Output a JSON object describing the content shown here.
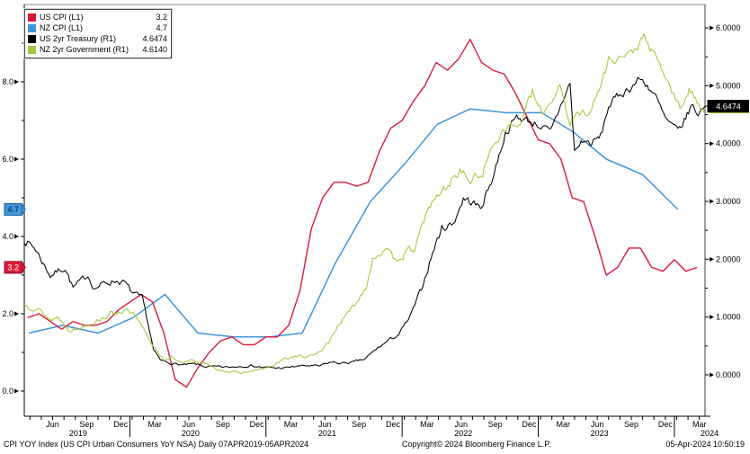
{
  "legend": {
    "items": [
      {
        "id": "us-cpi",
        "label": "US CPI (L1)",
        "value": "3.2",
        "color": "#d91a3a"
      },
      {
        "id": "nz-cpi",
        "label": "NZ CPI (L1)",
        "value": "4.7",
        "color": "#3f95da"
      },
      {
        "id": "us-2yr",
        "label": "US 2yr Treasury (R1)",
        "value": "4.6474",
        "color": "#000000"
      },
      {
        "id": "nz-2yr",
        "label": "NZ 2yr Government (R1)",
        "value": "4.6140",
        "color": "#a2c83c"
      }
    ]
  },
  "footer": {
    "left": "CPI YOY Index (US CPI Urban Consumers YoY NSA)  Daily 07APR2019-05APR2024",
    "copyright": "Copyright© 2024 Bloomberg Finance L.P.",
    "datetime": "05-Apr-2024 10:50:19"
  },
  "chart_data": {
    "type": "line",
    "title": "",
    "grid": false,
    "legend_position": "top-left",
    "x_axis": {
      "unit": "months since 2019-04-07 (span 07APR2019 - 05APR2024)",
      "month_tick_step": 1,
      "month_labels": [
        {
          "t": 2.5,
          "l": "Jun"
        },
        {
          "t": 5.5,
          "l": "Sep"
        },
        {
          "t": 8.5,
          "l": "Dec"
        },
        {
          "t": 11.5,
          "l": "Mar"
        },
        {
          "t": 14.5,
          "l": "Jun"
        },
        {
          "t": 17.5,
          "l": "Sep"
        },
        {
          "t": 20.5,
          "l": "Dec"
        },
        {
          "t": 23.5,
          "l": "Mar"
        },
        {
          "t": 26.5,
          "l": "Jun"
        },
        {
          "t": 29.5,
          "l": "Sep"
        },
        {
          "t": 32.5,
          "l": "Dec"
        },
        {
          "t": 35.5,
          "l": "Mar"
        },
        {
          "t": 38.5,
          "l": "Jun"
        },
        {
          "t": 41.5,
          "l": "Sep"
        },
        {
          "t": 44.5,
          "l": "Dec"
        },
        {
          "t": 47.5,
          "l": "Mar"
        },
        {
          "t": 50.5,
          "l": "Jun"
        },
        {
          "t": 53.5,
          "l": "Sep"
        },
        {
          "t": 56.5,
          "l": "Dec"
        },
        {
          "t": 59.5,
          "l": "Mar"
        }
      ],
      "year_labels": [
        {
          "t": 4.75,
          "l": "2019"
        },
        {
          "t": 14.65,
          "l": "2020"
        },
        {
          "t": 26.7,
          "l": "2021"
        },
        {
          "t": 38.7,
          "l": "2022"
        },
        {
          "t": 50.7,
          "l": "2023"
        },
        {
          "t": 60.4,
          "l": "2024"
        }
      ],
      "year_dividers_t": [
        9.3,
        21.3,
        33.3,
        45.3,
        57.3
      ]
    },
    "left_axis": {
      "name": "L1 (CPI YoY %)",
      "range": [
        -0.651,
        10.0
      ],
      "ticks": [
        {
          "v": 8,
          "label": "8.0"
        },
        {
          "v": 6,
          "label": "6.0"
        },
        {
          "v": 4,
          "label": "4.0"
        },
        {
          "v": 2,
          "label": "2.0"
        },
        {
          "v": 0,
          "label": "0.0"
        }
      ],
      "minor": [
        9,
        7,
        5,
        3,
        1
      ]
    },
    "right_axis": {
      "name": "R1 (2yr yield %)",
      "range": [
        -0.715,
        6.405
      ],
      "ticks": [
        {
          "v": 6,
          "label": "6.0000"
        },
        {
          "v": 5,
          "label": "5.0000"
        },
        {
          "v": 4,
          "label": "4.0000"
        },
        {
          "v": 3,
          "label": "3.0000"
        },
        {
          "v": 2,
          "label": "2.0000"
        },
        {
          "v": 1,
          "label": "1.0000"
        },
        {
          "v": 0,
          "label": "0.0000"
        }
      ],
      "minor": [
        5.5,
        4.5,
        3.5,
        2.5,
        1.5,
        0.5
      ]
    },
    "badges": [
      {
        "side": "left",
        "axis": "L1",
        "value": 4.7,
        "label": "4.7",
        "fill": "#3f95da",
        "stroke": "#1d5e9e",
        "text_color": "#06233f"
      },
      {
        "side": "left",
        "axis": "L1",
        "value": 3.2,
        "label": "3.2",
        "fill": "#d91a3a",
        "stroke": "#8c0e24",
        "text_color": "#ffffff"
      },
      {
        "side": "right",
        "axis": "R1",
        "value": 4.6474,
        "label": "4.6474",
        "fill": "#000000",
        "stroke": "#000000",
        "text_color": "#ffffff",
        "backing": "#a2c83c"
      }
    ],
    "series": [
      {
        "id": "nz-cpi",
        "name": "NZ CPI (L1)",
        "axis": "L1",
        "color": "#3f95da",
        "width": 1.5,
        "noise": 0,
        "points": [
          [
            0.4,
            1.5
          ],
          [
            3.4,
            1.7
          ],
          [
            6.5,
            1.5
          ],
          [
            9.6,
            1.9
          ],
          [
            12.4,
            2.5
          ],
          [
            15.3,
            1.5
          ],
          [
            18.5,
            1.4
          ],
          [
            21.6,
            1.4
          ],
          [
            24.5,
            1.5
          ],
          [
            27.4,
            3.3
          ],
          [
            30.5,
            4.9
          ],
          [
            33.6,
            5.9
          ],
          [
            36.4,
            6.9
          ],
          [
            39.3,
            7.3
          ],
          [
            42.5,
            7.2
          ],
          [
            45.6,
            7.2
          ],
          [
            48.4,
            6.7
          ],
          [
            51.3,
            6.0
          ],
          [
            54.5,
            5.6
          ],
          [
            57.6,
            4.7
          ]
        ]
      },
      {
        "id": "us-cpi",
        "name": "US CPI (L1)",
        "axis": "L1",
        "color": "#d91a3a",
        "width": 1.4,
        "noise": 0,
        "x_start": 0.3,
        "x_step": 1,
        "values": [
          1.9,
          2.0,
          1.8,
          1.6,
          1.8,
          1.7,
          1.7,
          1.8,
          2.1,
          2.3,
          2.5,
          2.3,
          1.5,
          0.3,
          0.1,
          0.6,
          1.0,
          1.3,
          1.4,
          1.2,
          1.2,
          1.4,
          1.4,
          1.7,
          2.6,
          4.2,
          5.0,
          5.4,
          5.4,
          5.3,
          5.4,
          6.2,
          6.8,
          7.0,
          7.5,
          7.9,
          8.5,
          8.3,
          8.6,
          9.1,
          8.5,
          8.3,
          8.2,
          7.7,
          7.1,
          6.5,
          6.4,
          6.0,
          5.0,
          4.9,
          4.0,
          3.0,
          3.2,
          3.7,
          3.7,
          3.2,
          3.1,
          3.4,
          3.1,
          3.2
        ]
      },
      {
        "id": "us-2yr",
        "name": "US 2yr Treasury (R1)",
        "axis": "R1",
        "color": "#000000",
        "width": 1.05,
        "noise": 0.05,
        "seed": 7,
        "points": [
          [
            0,
            2.34
          ],
          [
            1,
            2.18
          ],
          [
            1.7,
            1.92
          ],
          [
            2.3,
            1.72
          ],
          [
            3,
            1.8
          ],
          [
            3.6,
            1.86
          ],
          [
            4.3,
            1.5
          ],
          [
            5,
            1.62
          ],
          [
            5.6,
            1.73
          ],
          [
            6.2,
            1.5
          ],
          [
            7,
            1.58
          ],
          [
            8,
            1.63
          ],
          [
            8.8,
            1.6
          ],
          [
            9.6,
            1.4
          ],
          [
            10.4,
            1.32
          ],
          [
            10.9,
            0.9
          ],
          [
            11.4,
            0.42
          ],
          [
            12,
            0.25
          ],
          [
            13,
            0.2
          ],
          [
            14,
            0.17
          ],
          [
            15,
            0.19
          ],
          [
            16,
            0.14
          ],
          [
            17,
            0.14
          ],
          [
            18,
            0.13
          ],
          [
            19,
            0.15
          ],
          [
            20,
            0.16
          ],
          [
            21,
            0.13
          ],
          [
            22,
            0.12
          ],
          [
            23,
            0.12
          ],
          [
            24,
            0.15
          ],
          [
            25,
            0.16
          ],
          [
            26,
            0.15
          ],
          [
            27,
            0.22
          ],
          [
            28,
            0.2
          ],
          [
            29,
            0.22
          ],
          [
            30,
            0.27
          ],
          [
            31,
            0.44
          ],
          [
            32,
            0.58
          ],
          [
            33,
            0.7
          ],
          [
            34,
            1.0
          ],
          [
            35,
            1.48
          ],
          [
            36,
            2.12
          ],
          [
            36.8,
            2.54
          ],
          [
            37.8,
            2.62
          ],
          [
            38.7,
            3.05
          ],
          [
            39.5,
            2.98
          ],
          [
            40.2,
            2.88
          ],
          [
            41.3,
            3.42
          ],
          [
            42.4,
            4.18
          ],
          [
            43.4,
            4.46
          ],
          [
            44.4,
            4.4
          ],
          [
            45.4,
            4.32
          ],
          [
            46.4,
            4.18
          ],
          [
            47.4,
            4.72
          ],
          [
            48.1,
            5.04
          ],
          [
            48.5,
            3.86
          ],
          [
            49.2,
            4.05
          ],
          [
            50,
            4.0
          ],
          [
            50.8,
            4.12
          ],
          [
            51.5,
            4.65
          ],
          [
            52.5,
            4.85
          ],
          [
            53.5,
            4.98
          ],
          [
            54.2,
            5.12
          ],
          [
            54.9,
            5.02
          ],
          [
            55.6,
            4.82
          ],
          [
            56.5,
            4.42
          ],
          [
            57.6,
            4.2
          ],
          [
            58.3,
            4.44
          ],
          [
            58.8,
            4.66
          ],
          [
            59.4,
            4.52
          ],
          [
            60,
            4.6474
          ]
        ]
      },
      {
        "id": "nz-2yr",
        "name": "NZ 2yr Government (R1)",
        "axis": "R1",
        "color": "#a2c83c",
        "width": 1.05,
        "noise": 0.055,
        "seed": 13,
        "points": [
          [
            0,
            1.22
          ],
          [
            0.8,
            1.18
          ],
          [
            1.6,
            1.08
          ],
          [
            2.3,
            0.95
          ],
          [
            3,
            1.0
          ],
          [
            3.9,
            0.8
          ],
          [
            4.6,
            0.78
          ],
          [
            5.3,
            0.86
          ],
          [
            6.1,
            0.92
          ],
          [
            7,
            1.0
          ],
          [
            8,
            1.08
          ],
          [
            8.8,
            1.12
          ],
          [
            9.6,
            1.04
          ],
          [
            10.5,
            0.78
          ],
          [
            11.2,
            0.55
          ],
          [
            11.8,
            0.4
          ],
          [
            12.4,
            0.24
          ],
          [
            13,
            0.3
          ],
          [
            14,
            0.22
          ],
          [
            15,
            0.25
          ],
          [
            16,
            0.18
          ],
          [
            17,
            0.1
          ],
          [
            18,
            0.06
          ],
          [
            19,
            0.03
          ],
          [
            20,
            0.06
          ],
          [
            21,
            0.1
          ],
          [
            22,
            0.16
          ],
          [
            23,
            0.28
          ],
          [
            24,
            0.33
          ],
          [
            25,
            0.3
          ],
          [
            26,
            0.4
          ],
          [
            26.8,
            0.55
          ],
          [
            27.6,
            0.85
          ],
          [
            28.5,
            1.05
          ],
          [
            29.5,
            1.32
          ],
          [
            30.2,
            1.58
          ],
          [
            30.7,
            2.02
          ],
          [
            31.5,
            2.15
          ],
          [
            32.5,
            2.02
          ],
          [
            33.5,
            2.08
          ],
          [
            34.5,
            2.2
          ],
          [
            35.5,
            2.85
          ],
          [
            36.5,
            3.1
          ],
          [
            37.5,
            3.32
          ],
          [
            38.4,
            3.55
          ],
          [
            39.3,
            3.35
          ],
          [
            40.4,
            3.5
          ],
          [
            41.5,
            4.05
          ],
          [
            42.5,
            4.32
          ],
          [
            43.6,
            4.3
          ],
          [
            44.8,
            4.88
          ],
          [
            45.6,
            4.5
          ],
          [
            46.5,
            4.75
          ],
          [
            47.2,
            5.05
          ],
          [
            48.1,
            4.35
          ],
          [
            48.8,
            4.5
          ],
          [
            50,
            4.6
          ],
          [
            50.8,
            5.0
          ],
          [
            51.5,
            5.45
          ],
          [
            52.5,
            5.5
          ],
          [
            53.5,
            5.55
          ],
          [
            54.6,
            5.83
          ],
          [
            55.4,
            5.55
          ],
          [
            56.3,
            5.25
          ],
          [
            57.2,
            4.85
          ],
          [
            57.8,
            4.58
          ],
          [
            58.6,
            4.95
          ],
          [
            59.3,
            4.7
          ],
          [
            60,
            4.614
          ]
        ]
      }
    ]
  }
}
